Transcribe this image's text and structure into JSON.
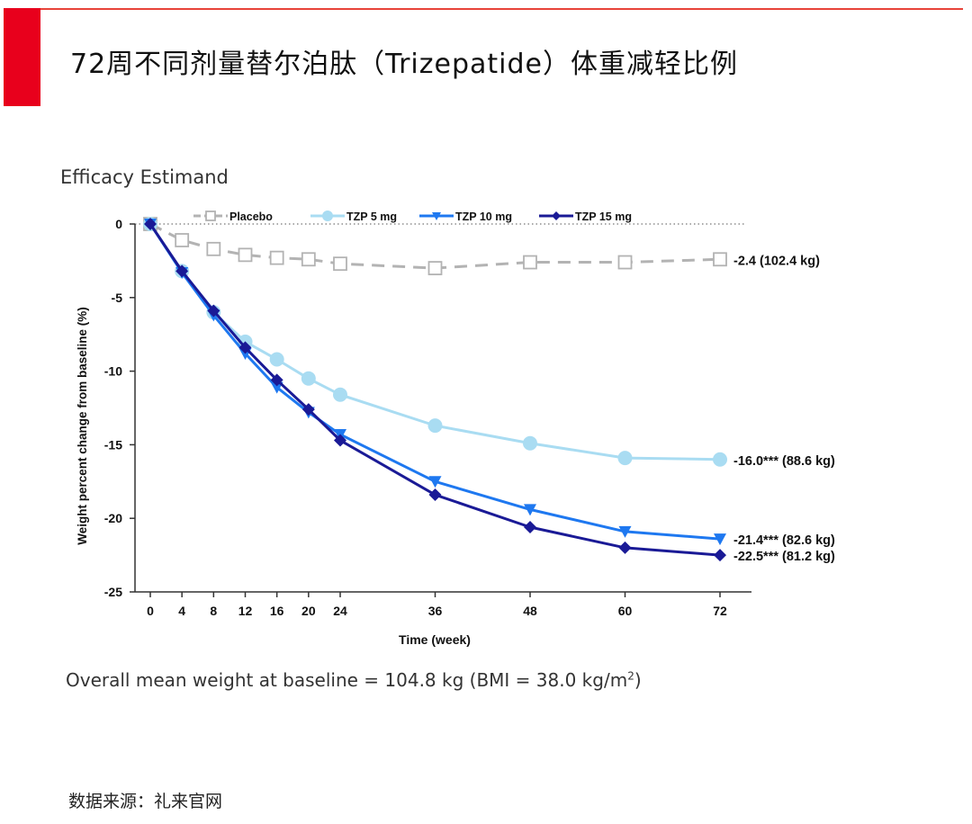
{
  "header": {
    "title": "72周不同剂量替尔泊肽（Trizepatide）体重减轻比例",
    "accent_color": "#e8001c"
  },
  "chart_data": {
    "type": "line",
    "subtitle": "Efficacy Estimand",
    "xlabel": "Time (week)",
    "ylabel": "Weight percent change from baseline (%)",
    "x_ticks": [
      0,
      4,
      8,
      12,
      16,
      20,
      24,
      36,
      48,
      60,
      72
    ],
    "y_ticks": [
      0,
      -5,
      -10,
      -15,
      -20,
      -25
    ],
    "ylim": [
      -25,
      0
    ],
    "legend_position": "top",
    "series": [
      {
        "name": "Placebo",
        "color": "#b3b3b3",
        "marker": "square",
        "dashed": true,
        "x": [
          0,
          4,
          8,
          12,
          16,
          20,
          24,
          36,
          48,
          60,
          72
        ],
        "values": [
          0,
          -1.1,
          -1.7,
          -2.1,
          -2.3,
          -2.4,
          -2.7,
          -3.0,
          -2.6,
          -2.6,
          -2.4
        ],
        "end_label": "-2.4 (102.4 kg)"
      },
      {
        "name": "TZP 5 mg",
        "color": "#a9dcf2",
        "marker": "circle",
        "dashed": false,
        "x": [
          0,
          4,
          8,
          12,
          16,
          20,
          24,
          36,
          48,
          60,
          72
        ],
        "values": [
          0,
          -3.2,
          -6.0,
          -8.0,
          -9.2,
          -10.5,
          -11.6,
          -13.7,
          -14.9,
          -15.9,
          -16.0
        ],
        "end_label": "-16.0*** (88.6 kg)"
      },
      {
        "name": "TZP 10 mg",
        "color": "#1e78f0",
        "marker": "triangle-down",
        "dashed": false,
        "x": [
          0,
          4,
          8,
          12,
          16,
          20,
          24,
          36,
          48,
          60,
          72
        ],
        "values": [
          0,
          -3.3,
          -6.2,
          -8.8,
          -11.1,
          -12.8,
          -14.3,
          -17.5,
          -19.4,
          -20.9,
          -21.4
        ],
        "end_label": "-21.4*** (82.6 kg)"
      },
      {
        "name": "TZP 15 mg",
        "color": "#1a1a96",
        "marker": "diamond",
        "dashed": false,
        "x": [
          0,
          4,
          8,
          12,
          16,
          20,
          24,
          36,
          48,
          60,
          72
        ],
        "values": [
          0,
          -3.2,
          -5.9,
          -8.4,
          -10.6,
          -12.6,
          -14.7,
          -18.4,
          -20.6,
          -22.0,
          -22.5
        ],
        "end_label": "-22.5*** (81.2 kg)"
      }
    ]
  },
  "footnote": {
    "text": "Overall mean weight at baseline = 104.8 kg (BMI = 38.0 kg/m",
    "superscript": "2",
    "closing": ")"
  },
  "source": "数据来源：礼来官网"
}
